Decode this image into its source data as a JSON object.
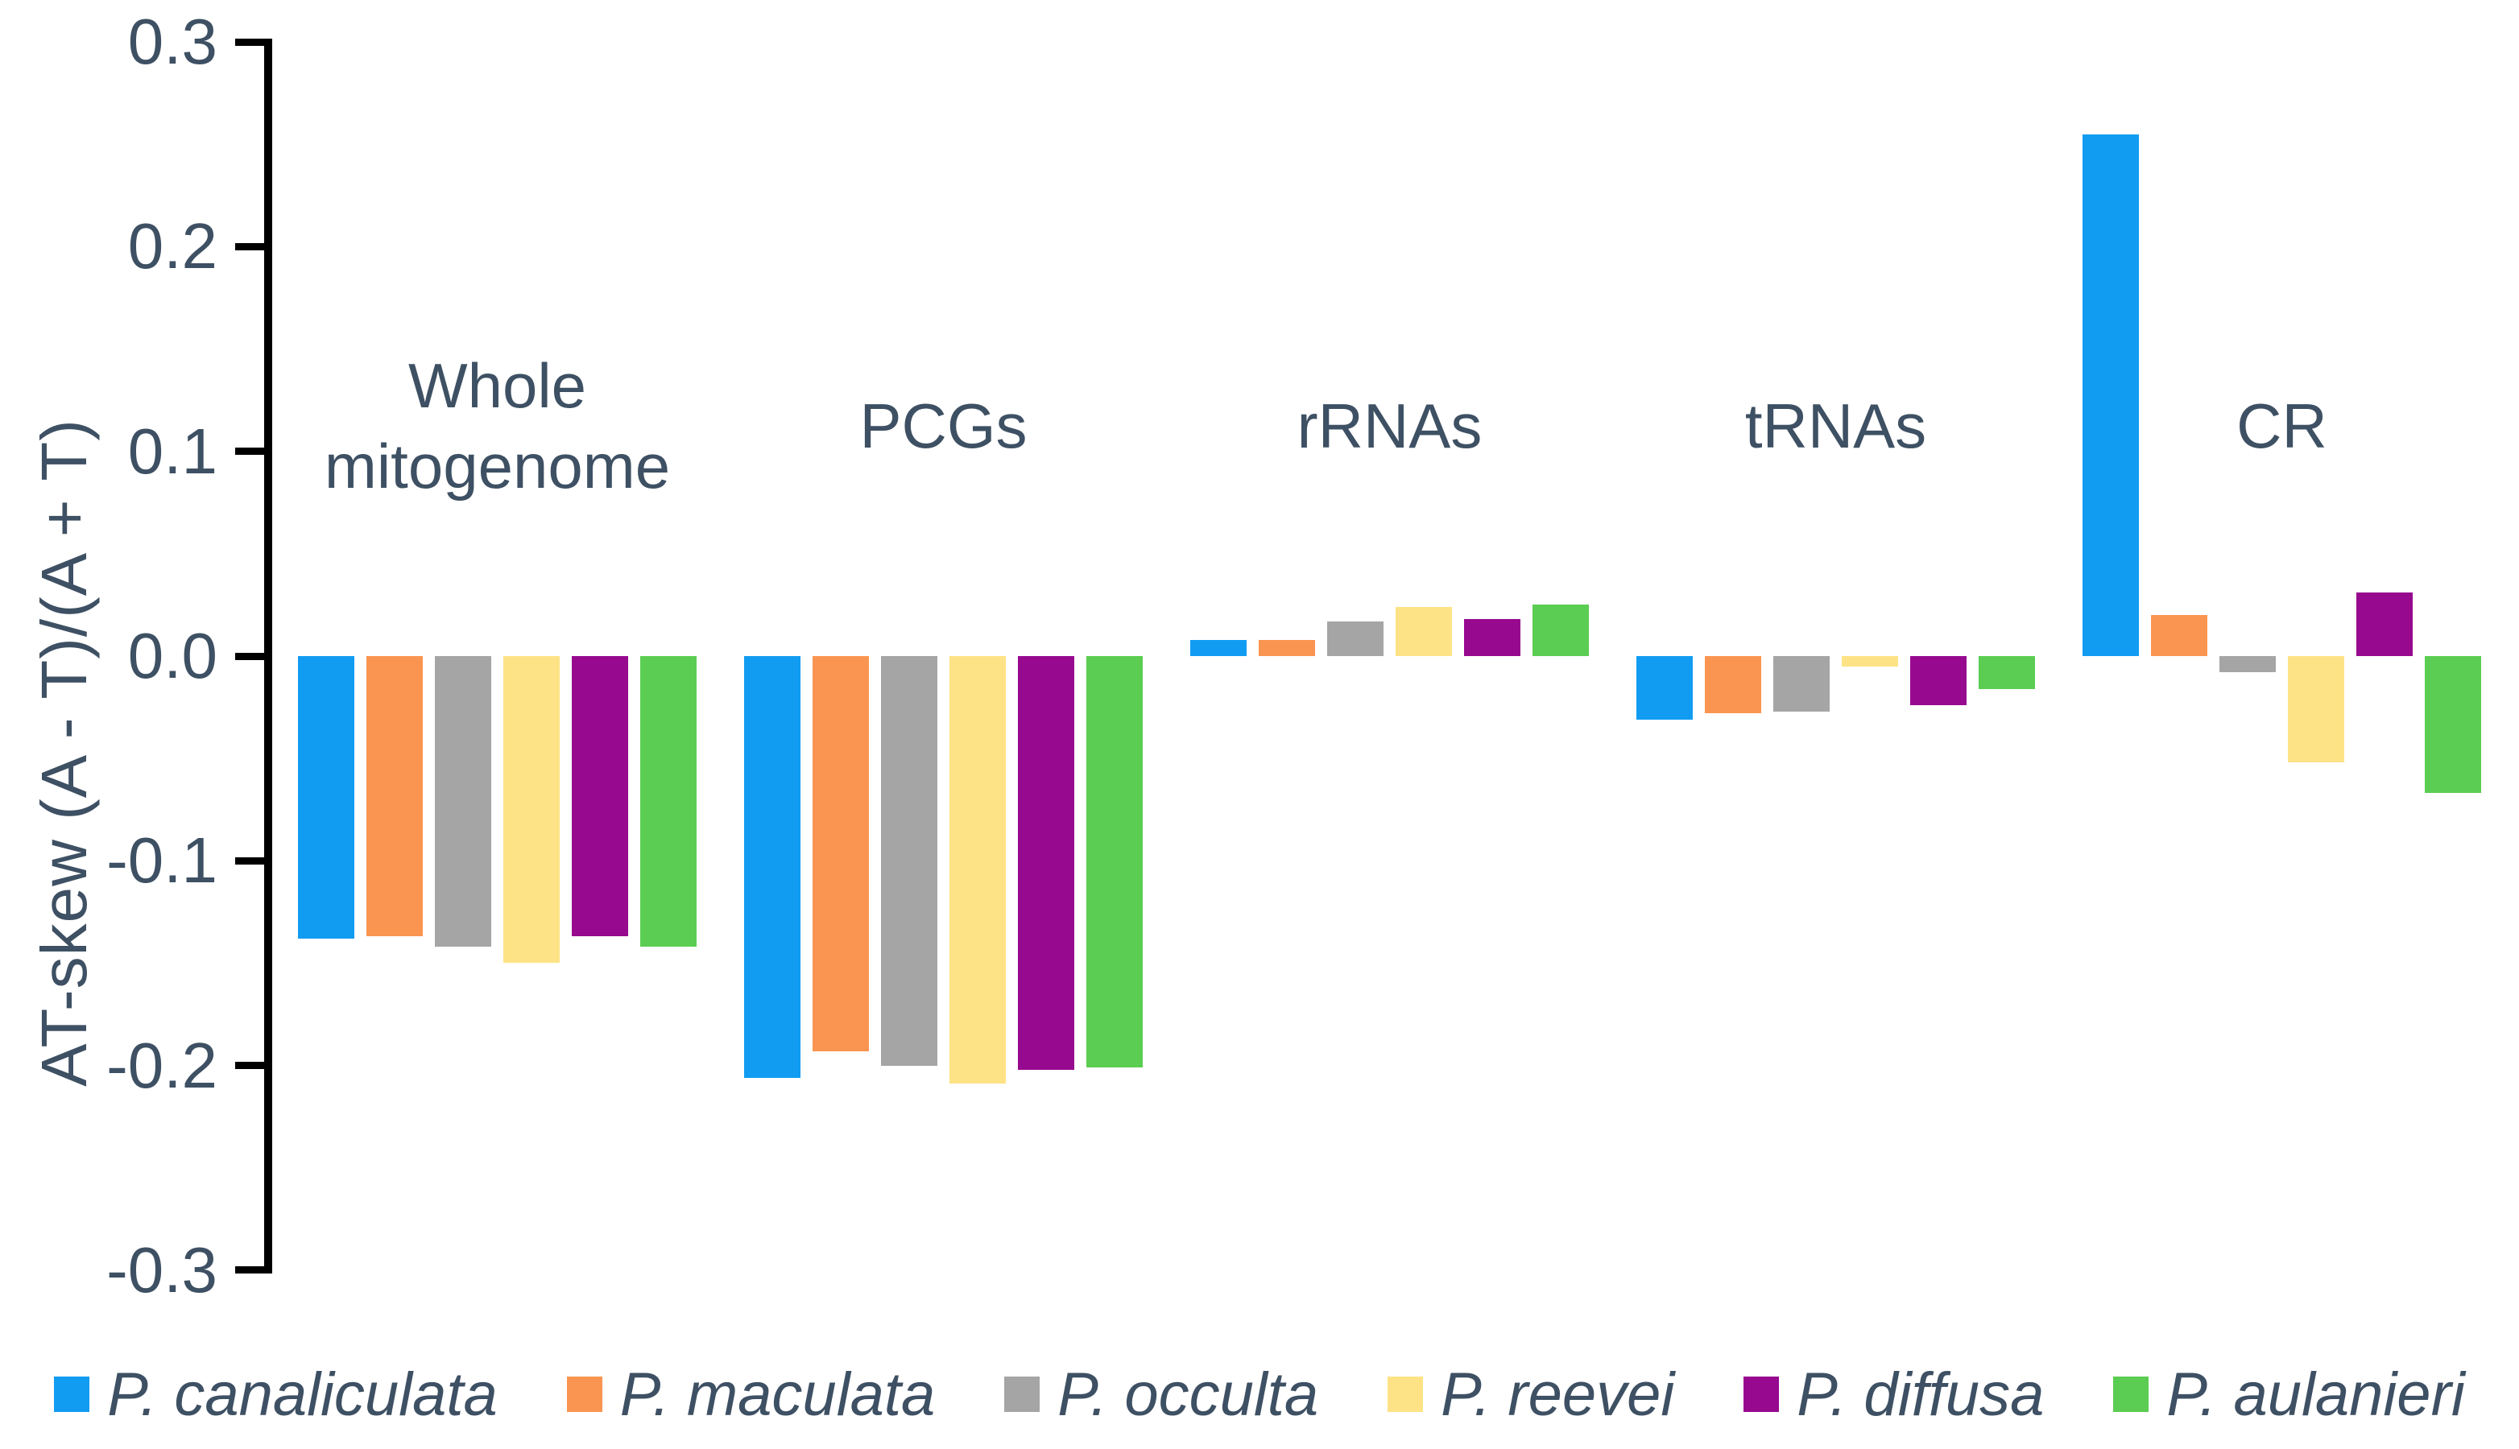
{
  "colors": {
    "background": "#ffffff",
    "axis": "#000000",
    "text": "#3E5063"
  },
  "chart_data": {
    "type": "bar",
    "title": "",
    "ylabel": "AT-skew (A - T)/(A + T)",
    "xlabel": "",
    "ylim": [
      -0.3,
      0.3
    ],
    "yticks": [
      "0.3",
      "0.2",
      "0.1",
      "0.0",
      "-0.1",
      "-0.2",
      "-0.3"
    ],
    "grid": false,
    "legend_position": "bottom",
    "categories": [
      "Whole mitogenome",
      "PCGs",
      "rRNAs",
      "tRNAs",
      "CR"
    ],
    "series": [
      {
        "name": "P. canaliculata",
        "color": "#119CF2",
        "values": [
          -0.138,
          -0.206,
          0.008,
          -0.031,
          0.255
        ]
      },
      {
        "name": "P. maculata",
        "color": "#FA9551",
        "values": [
          -0.137,
          -0.193,
          0.008,
          -0.028,
          0.02
        ]
      },
      {
        "name": "P. occulta",
        "color": "#A5A5A5",
        "values": [
          -0.142,
          -0.2,
          0.017,
          -0.027,
          -0.008
        ]
      },
      {
        "name": "P. reevei",
        "color": "#FEE386",
        "values": [
          -0.15,
          -0.209,
          0.024,
          -0.005,
          -0.052
        ]
      },
      {
        "name": "P. diffusa",
        "color": "#97098F",
        "values": [
          -0.137,
          -0.202,
          0.018,
          -0.024,
          0.031
        ]
      },
      {
        "name": "P. aulanieri",
        "color": "#5BCD52",
        "values": [
          -0.142,
          -0.201,
          0.025,
          -0.016,
          -0.067
        ]
      }
    ]
  }
}
